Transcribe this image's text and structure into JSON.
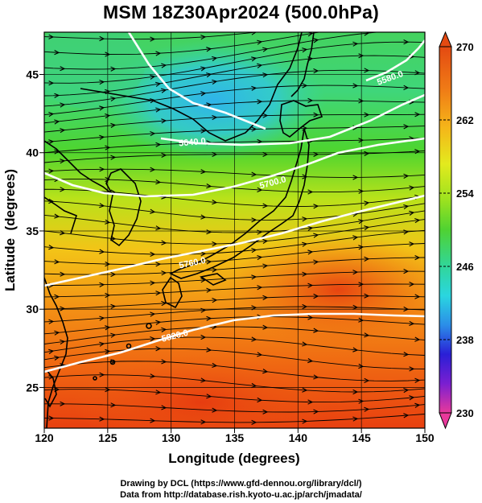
{
  "title": "MSM 18Z30Apr2024 (500.0hPa)",
  "map": {
    "xlabel": "Longitude (degrees)",
    "ylabel": "Latitude  (degrees)",
    "lon_range": [
      120,
      150
    ],
    "lat_range": [
      22.4,
      47.7
    ],
    "x_ticks": [
      "120",
      "125",
      "130",
      "135",
      "140",
      "145",
      "150"
    ],
    "y_ticks": [
      "25",
      "30",
      "35",
      "40",
      "45"
    ],
    "contour_labels": [
      "5580.0",
      "5640.0",
      "5700.0",
      "5760.0",
      "5820.0"
    ]
  },
  "colorbar": {
    "min": 230,
    "max": 270,
    "tick_labels": [
      "270",
      "262",
      "254",
      "246",
      "238",
      "230"
    ],
    "colors": [
      "#e8399b",
      "#7a1fd1",
      "#2a1fd6",
      "#2b8ee8",
      "#2ad6e0",
      "#31d69a",
      "#4fd232",
      "#9be21f",
      "#e3ea1e",
      "#f5b519",
      "#f07d16",
      "#e44a12"
    ]
  },
  "footer": {
    "line1": "Drawing by DCL (https://www.gfd-dennou.org/library/dcl/)",
    "line2": "Data from http://database.rish.kyoto-u.ac.jp/arch/jmadata/"
  }
}
